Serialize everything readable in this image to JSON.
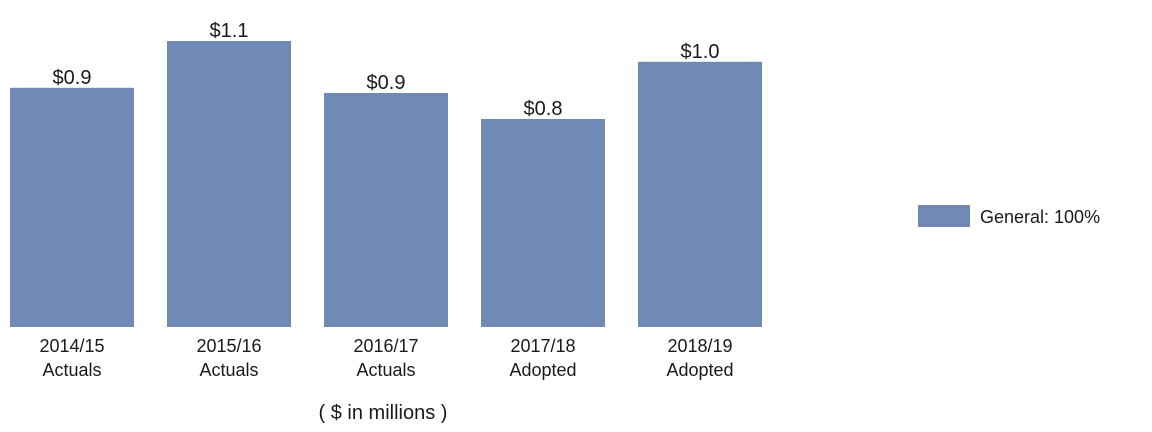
{
  "chart_data": {
    "type": "bar",
    "categories": [
      [
        "2014/15",
        "Actuals"
      ],
      [
        "2015/16",
        "Actuals"
      ],
      [
        "2016/17",
        "Actuals"
      ],
      [
        "2017/18",
        "Adopted"
      ],
      [
        "2018/19",
        "Adopted"
      ]
    ],
    "series": [
      {
        "name": "General: 100%",
        "values": [
          0.92,
          1.1,
          0.9,
          0.8,
          1.02
        ],
        "labels": [
          "$0.9",
          "$1.1",
          "$0.9",
          "$0.8",
          "$1.0"
        ],
        "color": "#6f8ab5"
      }
    ],
    "unit_label": "( $ in millions )",
    "ylim": [
      0,
      1.2
    ],
    "grid": false,
    "legend": "right"
  }
}
